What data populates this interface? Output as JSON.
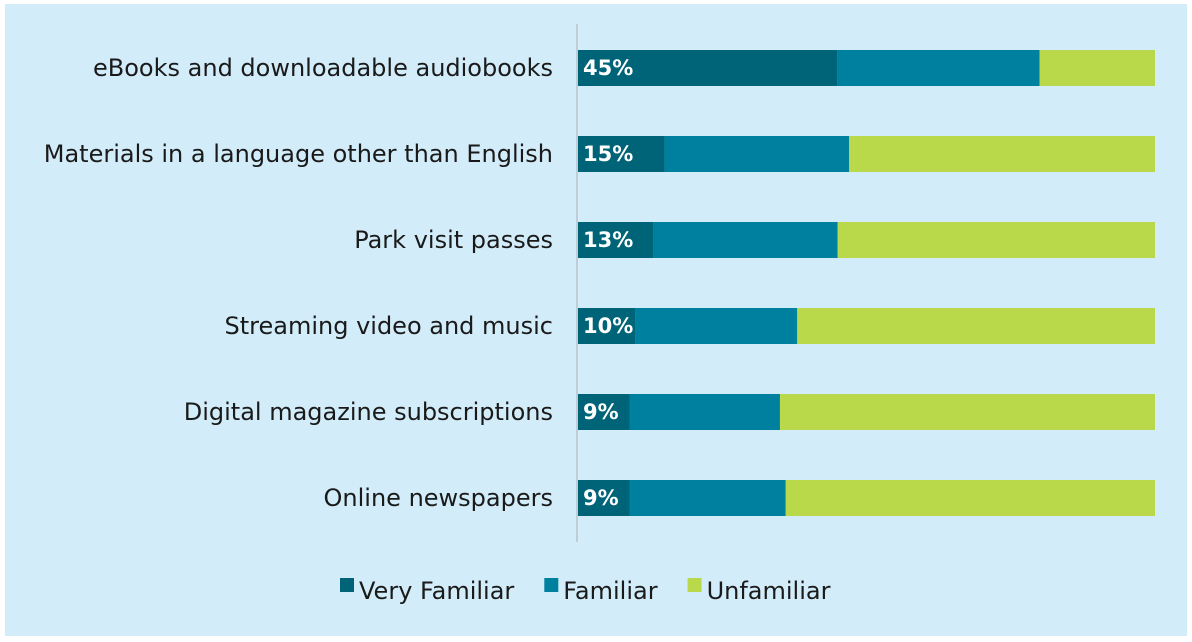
{
  "chart_data": {
    "type": "bar",
    "orientation": "horizontal",
    "stacked": "100%",
    "categories": [
      "eBooks and downloadable audiobooks",
      "Materials in a language other than English",
      "Park visit passes",
      "Streaming video and music",
      "Digital magazine subscriptions",
      "Online newspapers"
    ],
    "series": [
      {
        "name": "Very Familiar",
        "color": "#006478",
        "values": [
          45,
          15,
          13,
          10,
          9,
          9
        ]
      },
      {
        "name": "Familiar",
        "color": "#00809f",
        "values": [
          35,
          32,
          32,
          28,
          26,
          27
        ]
      },
      {
        "name": "Unfamiliar",
        "color": "#bad94a",
        "values": [
          20,
          53,
          55,
          62,
          65,
          64
        ]
      }
    ],
    "data_labels": [
      "45%",
      "15%",
      "13%",
      "10%",
      "9%",
      "9%"
    ],
    "xlim": [
      0,
      100
    ],
    "legend_position": "bottom",
    "grid": false
  },
  "colors": {
    "background": "#d2ecf9",
    "axis_line": "#b7c4cc"
  }
}
